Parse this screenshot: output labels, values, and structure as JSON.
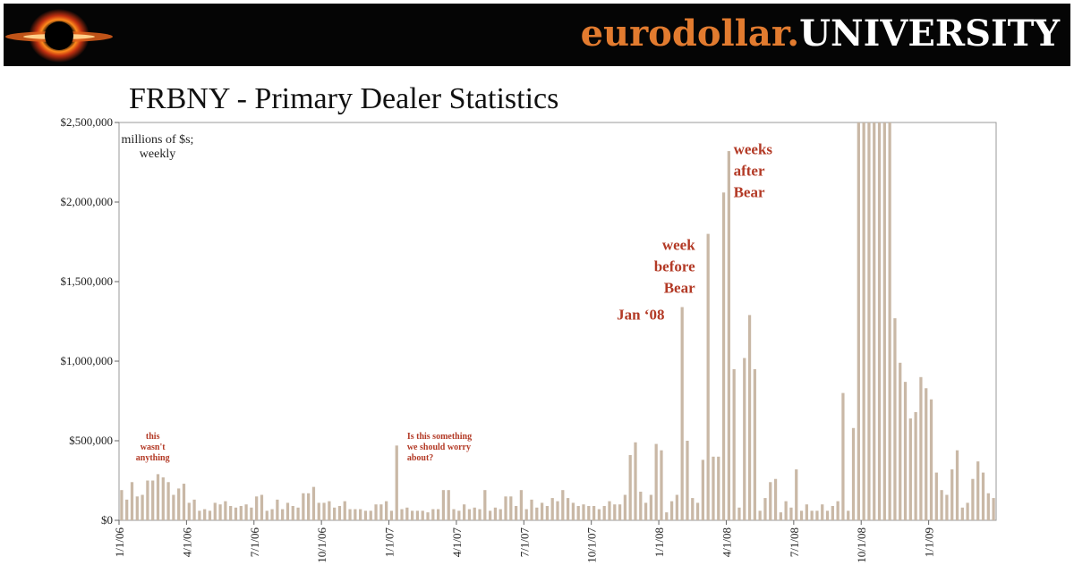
{
  "header": {
    "brand_part1": "eurodollar.",
    "brand_part2": "UNIVERSITY",
    "logo_icon": "black-hole-logo-icon",
    "accent_color": "#e27b2f"
  },
  "title": "FRBNY - Primary Dealer Statistics",
  "chart_data": {
    "type": "bar",
    "unit_note": [
      "millions of $s;",
      "weekly"
    ],
    "ylim": [
      0,
      2500000
    ],
    "y_ticks": [
      0,
      500000,
      1000000,
      1500000,
      2000000,
      2500000
    ],
    "y_tick_labels": [
      "$0",
      "$500,000",
      "$1,000,000",
      "$1,500,000",
      "$2,000,000",
      "$2,500,000"
    ],
    "x_tick_labels": [
      "1/1/06",
      "4/1/06",
      "7/1/06",
      "10/1/06",
      "1/1/07",
      "4/1/07",
      "7/1/07",
      "10/1/07",
      "1/1/08",
      "4/1/08",
      "7/1/08",
      "10/1/08",
      "1/1/09"
    ],
    "x_tick_week_index": [
      0,
      13,
      26,
      39,
      52,
      65,
      78,
      91,
      104,
      117,
      130,
      143,
      156
    ],
    "bar_color": "#c9b8a6",
    "grid": false,
    "values": [
      190000,
      130000,
      240000,
      150000,
      160000,
      250000,
      250000,
      290000,
      270000,
      240000,
      160000,
      200000,
      230000,
      110000,
      130000,
      60000,
      70000,
      60000,
      110000,
      100000,
      120000,
      90000,
      80000,
      90000,
      100000,
      80000,
      150000,
      160000,
      60000,
      70000,
      130000,
      70000,
      110000,
      90000,
      80000,
      170000,
      170000,
      210000,
      110000,
      110000,
      120000,
      80000,
      90000,
      120000,
      70000,
      70000,
      70000,
      60000,
      60000,
      100000,
      100000,
      120000,
      60000,
      470000,
      70000,
      80000,
      60000,
      60000,
      60000,
      50000,
      70000,
      70000,
      190000,
      190000,
      70000,
      60000,
      100000,
      70000,
      80000,
      70000,
      190000,
      60000,
      80000,
      70000,
      150000,
      150000,
      90000,
      190000,
      70000,
      130000,
      80000,
      110000,
      90000,
      140000,
      120000,
      190000,
      140000,
      110000,
      90000,
      100000,
      90000,
      90000,
      70000,
      90000,
      120000,
      100000,
      100000,
      160000,
      410000,
      490000,
      180000,
      110000,
      160000,
      480000,
      440000,
      50000,
      120000,
      160000,
      1340000,
      500000,
      140000,
      110000,
      380000,
      1800000,
      400000,
      400000,
      2060000,
      2320000,
      950000,
      80000,
      1020000,
      1290000,
      950000,
      60000,
      140000,
      240000,
      260000,
      50000,
      120000,
      80000,
      320000,
      60000,
      100000,
      60000,
      60000,
      100000,
      60000,
      90000,
      120000,
      800000,
      60000,
      580000,
      2500000,
      2500000,
      2500000,
      2500000,
      2500000,
      2500000,
      2500000,
      1270000,
      990000,
      870000,
      640000,
      680000,
      900000,
      830000,
      760000,
      300000,
      190000,
      160000,
      320000,
      440000,
      80000,
      110000,
      260000,
      370000,
      300000,
      170000,
      140000
    ],
    "annotations": [
      {
        "lines": [
          "this",
          "wasn't",
          "anything"
        ],
        "size": "small",
        "week": 6.5,
        "y": 510000
      },
      {
        "lines": [
          "Is this something",
          "we should worry",
          "about?"
        ],
        "size": "small",
        "week": 55.5,
        "y": 510000,
        "align": "start"
      },
      {
        "lines": [
          "Jan ‘08"
        ],
        "size": "large",
        "week": 100.5,
        "y": 1260000,
        "align": "middle"
      },
      {
        "lines": [
          "week",
          "before",
          "Bear"
        ],
        "size": "large",
        "week": 111,
        "y": 1700000,
        "align": "end"
      },
      {
        "lines": [
          "weeks",
          "after",
          "Bear"
        ],
        "size": "large",
        "week": 118.4,
        "y": 2300000,
        "align": "start"
      }
    ]
  }
}
